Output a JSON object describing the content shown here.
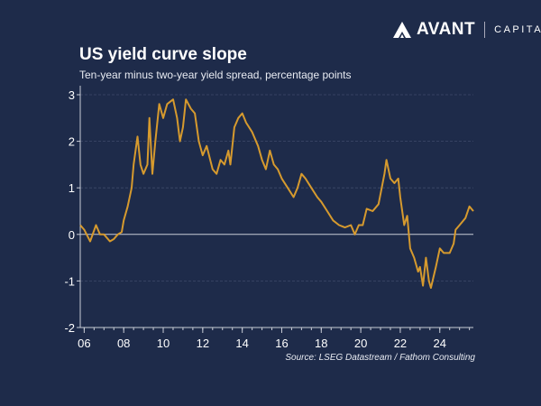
{
  "logo": {
    "brand": "AVANT",
    "suffix": "CAPITAL"
  },
  "colors": {
    "background": "#1e2b4a",
    "line": "#d69a2e",
    "grid": "#3e4b6a"
  },
  "chart_data": {
    "type": "line",
    "title": "US yield curve slope",
    "subtitle": "Ten-year minus two-year yield spread, percentage points",
    "source": "Source: LSEG Datastream / Fathom Consulting",
    "xlabel": "",
    "ylabel": "",
    "xlim": [
      2005.8,
      2025.7
    ],
    "ylim": [
      -2,
      3
    ],
    "grid": true,
    "x_ticks": [
      "06",
      "08",
      "10",
      "12",
      "14",
      "16",
      "18",
      "20",
      "22",
      "24"
    ],
    "y_ticks": [
      "3",
      "2",
      "1",
      "0",
      "-1",
      "-2"
    ],
    "series": [
      {
        "x": [
          2005.8,
          2006.0,
          2006.3,
          2006.6,
          2006.8,
          2007.0,
          2007.3,
          2007.5,
          2007.7,
          2007.9,
          2008.0,
          2008.2,
          2008.4,
          2008.5,
          2008.7,
          2008.85,
          2009.0,
          2009.2,
          2009.3,
          2009.45,
          2009.6,
          2009.8,
          2010.0,
          2010.2,
          2010.5,
          2010.7,
          2010.85,
          2011.0,
          2011.15,
          2011.4,
          2011.6,
          2011.8,
          2012.0,
          2012.2,
          2012.5,
          2012.7,
          2012.9,
          2013.1,
          2013.3,
          2013.4,
          2013.6,
          2013.8,
          2014.0,
          2014.2,
          2014.5,
          2014.8,
          2015.0,
          2015.2,
          2015.4,
          2015.6,
          2015.8,
          2016.0,
          2016.3,
          2016.6,
          2016.8,
          2017.0,
          2017.2,
          2017.5,
          2017.8,
          2018.0,
          2018.3,
          2018.6,
          2018.9,
          2019.2,
          2019.5,
          2019.7,
          2019.9,
          2020.1,
          2020.3,
          2020.6,
          2020.9,
          2021.2,
          2021.3,
          2021.5,
          2021.7,
          2021.9,
          2022.0,
          2022.2,
          2022.35,
          2022.5,
          2022.7,
          2022.9,
          2023.0,
          2023.15,
          2023.3,
          2023.45,
          2023.55,
          2023.8,
          2024.0,
          2024.2,
          2024.5,
          2024.7,
          2024.8,
          2025.0,
          2025.3,
          2025.5,
          2025.7
        ],
        "y": [
          0.2,
          0.1,
          -0.15,
          0.2,
          0.0,
          0.0,
          -0.15,
          -0.1,
          0.0,
          0.05,
          0.3,
          0.6,
          1.0,
          1.5,
          2.1,
          1.5,
          1.3,
          1.5,
          2.5,
          1.3,
          2.0,
          2.8,
          2.5,
          2.8,
          2.9,
          2.5,
          2.0,
          2.3,
          2.9,
          2.7,
          2.6,
          2.0,
          1.7,
          1.9,
          1.4,
          1.3,
          1.6,
          1.5,
          1.8,
          1.5,
          2.3,
          2.5,
          2.6,
          2.4,
          2.2,
          1.9,
          1.6,
          1.4,
          1.8,
          1.5,
          1.4,
          1.2,
          1.0,
          0.8,
          1.0,
          1.3,
          1.2,
          1.0,
          0.8,
          0.7,
          0.5,
          0.3,
          0.2,
          0.15,
          0.2,
          0.0,
          0.2,
          0.2,
          0.55,
          0.5,
          0.65,
          1.3,
          1.6,
          1.2,
          1.1,
          1.2,
          0.8,
          0.2,
          0.4,
          -0.3,
          -0.5,
          -0.8,
          -0.7,
          -1.1,
          -0.5,
          -1.0,
          -1.15,
          -0.7,
          -0.3,
          -0.4,
          -0.4,
          -0.2,
          0.1,
          0.2,
          0.35,
          0.6,
          0.5
        ]
      }
    ]
  }
}
